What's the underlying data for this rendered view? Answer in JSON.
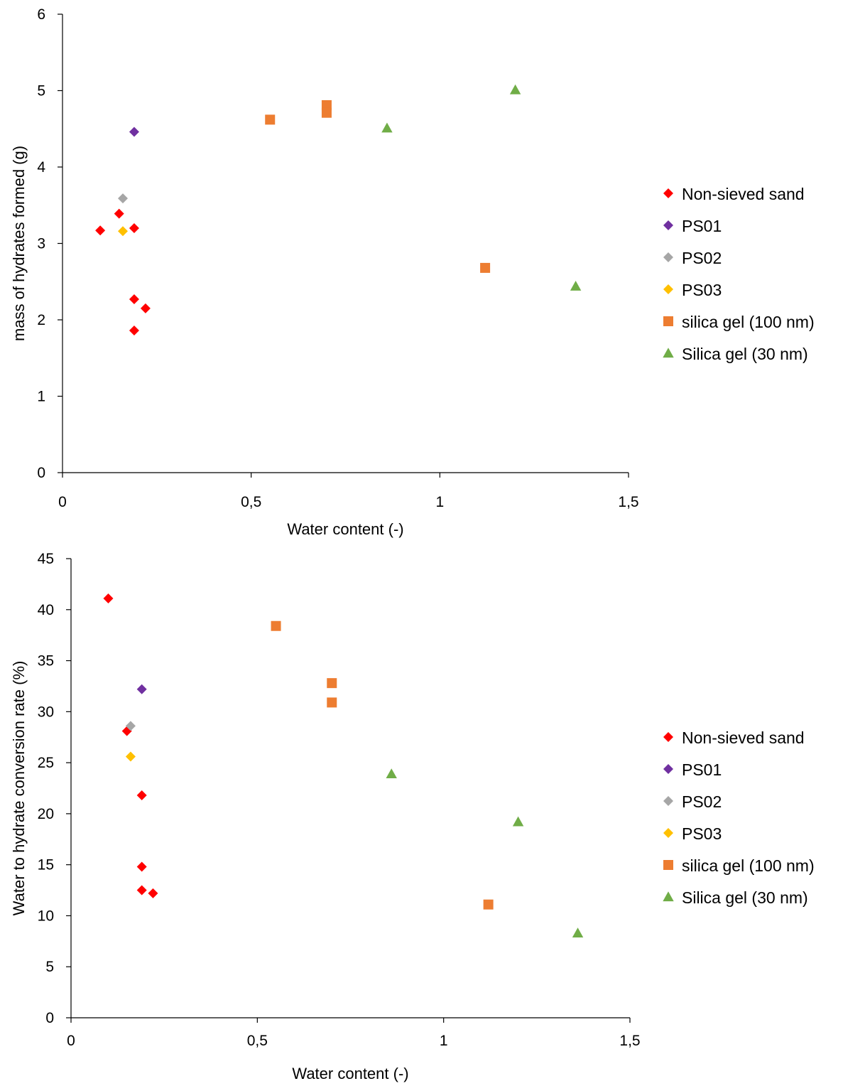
{
  "chart_data": [
    {
      "type": "scatter",
      "xlabel": "Water content (-)",
      "ylabel": "mass of hydrates formed (g)",
      "xlim": [
        0,
        1.5
      ],
      "ylim": [
        0,
        6
      ],
      "xticks": [
        0,
        0.5,
        1,
        1.5
      ],
      "xtick_labels": [
        "0",
        "0,5",
        "1",
        "1,5"
      ],
      "yticks": [
        0,
        1,
        2,
        3,
        4,
        5,
        6
      ],
      "ytick_labels": [
        "0",
        "1",
        "2",
        "3",
        "4",
        "5",
        "6"
      ],
      "grid": false,
      "legend_position": "right",
      "series": [
        {
          "name": "Non-sieved sand",
          "marker": "diamond",
          "color": "#ff0000",
          "points": [
            [
              0.1,
              3.17
            ],
            [
              0.15,
              3.39
            ],
            [
              0.19,
              3.2
            ],
            [
              0.19,
              2.27
            ],
            [
              0.22,
              2.15
            ],
            [
              0.19,
              1.86
            ]
          ]
        },
        {
          "name": "PS01",
          "marker": "diamond",
          "color": "#7030a0",
          "points": [
            [
              0.19,
              4.46
            ]
          ]
        },
        {
          "name": "PS02",
          "marker": "diamond",
          "color": "#a6a6a6",
          "points": [
            [
              0.16,
              3.59
            ]
          ]
        },
        {
          "name": "PS03",
          "marker": "diamond",
          "color": "#ffc000",
          "points": [
            [
              0.16,
              3.16
            ]
          ]
        },
        {
          "name": "silica gel (100 nm)",
          "marker": "square",
          "color": "#ed7d31",
          "points": [
            [
              0.55,
              4.62
            ],
            [
              0.7,
              4.81
            ],
            [
              0.7,
              4.71
            ],
            [
              1.12,
              2.68
            ]
          ]
        },
        {
          "name": "Silica gel (30 nm)",
          "marker": "triangle",
          "color": "#70ad47",
          "points": [
            [
              0.86,
              4.51
            ],
            [
              1.2,
              5.01
            ],
            [
              1.36,
              2.44
            ]
          ]
        }
      ]
    },
    {
      "type": "scatter",
      "xlabel": "Water content (-)",
      "ylabel": "Water to hydrate conversion rate (%)",
      "xlim": [
        0,
        1.5
      ],
      "ylim": [
        0,
        45
      ],
      "xticks": [
        0,
        0.5,
        1,
        1.5
      ],
      "xtick_labels": [
        "0",
        "0,5",
        "1",
        "1,5"
      ],
      "yticks": [
        0,
        5,
        10,
        15,
        20,
        25,
        30,
        35,
        40,
        45
      ],
      "ytick_labels": [
        "0",
        "5",
        "10",
        "15",
        "20",
        "25",
        "30",
        "35",
        "40",
        "45"
      ],
      "grid": false,
      "legend_position": "right",
      "series": [
        {
          "name": "Non-sieved sand",
          "marker": "diamond",
          "color": "#ff0000",
          "points": [
            [
              0.1,
              41.1
            ],
            [
              0.15,
              28.1
            ],
            [
              0.19,
              21.8
            ],
            [
              0.19,
              14.8
            ],
            [
              0.19,
              12.5
            ],
            [
              0.22,
              12.2
            ]
          ]
        },
        {
          "name": "PS01",
          "marker": "diamond",
          "color": "#7030a0",
          "points": [
            [
              0.19,
              32.2
            ]
          ]
        },
        {
          "name": "PS02",
          "marker": "diamond",
          "color": "#a6a6a6",
          "points": [
            [
              0.16,
              28.6
            ]
          ]
        },
        {
          "name": "PS03",
          "marker": "diamond",
          "color": "#ffc000",
          "points": [
            [
              0.16,
              25.6
            ]
          ]
        },
        {
          "name": "silica gel (100 nm)",
          "marker": "square",
          "color": "#ed7d31",
          "points": [
            [
              0.55,
              38.4
            ],
            [
              0.7,
              32.8
            ],
            [
              0.7,
              30.9
            ],
            [
              1.12,
              11.1
            ]
          ]
        },
        {
          "name": "Silica gel (30 nm)",
          "marker": "triangle",
          "color": "#70ad47",
          "points": [
            [
              0.86,
              23.9
            ],
            [
              1.2,
              19.2
            ],
            [
              1.36,
              8.3
            ]
          ]
        }
      ]
    }
  ]
}
